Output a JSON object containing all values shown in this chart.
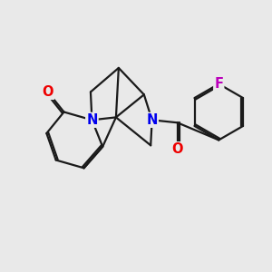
{
  "background_color": "#e9e9e9",
  "bond_color": "#1a1a1a",
  "bond_width": 1.6,
  "atom_colors": {
    "N": "#0000ee",
    "O": "#ee0000",
    "F": "#bb00bb",
    "C": "#1a1a1a"
  },
  "font_size_atom": 10.5
}
